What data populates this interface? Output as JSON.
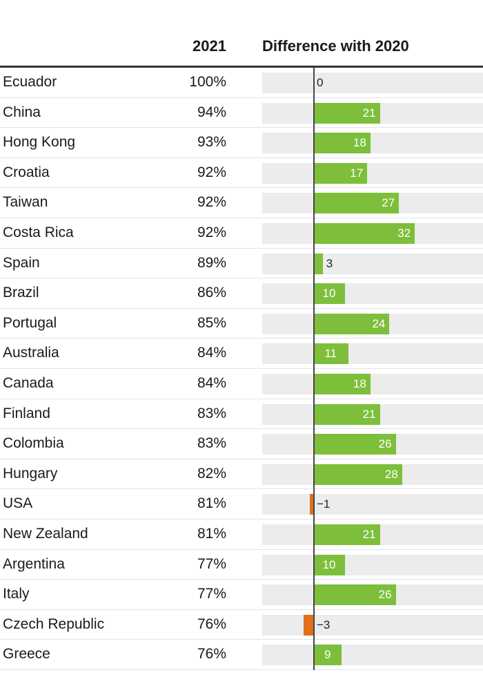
{
  "header": {
    "year_label": "2021",
    "diff_label": "Difference with 2020"
  },
  "colors": {
    "positive": "#7dbf3b",
    "negative": "#e0701a",
    "track": "#ececec"
  },
  "chart_data": {
    "type": "table",
    "columns": [
      "",
      "2021",
      "Difference with 2020"
    ],
    "rows": [
      {
        "country": "Ecuador",
        "share": "100%",
        "diff": 0,
        "diff_label": "0"
      },
      {
        "country": "China",
        "share": "94%",
        "diff": 21,
        "diff_label": "21"
      },
      {
        "country": "Hong Kong",
        "share": "93%",
        "diff": 18,
        "diff_label": "18"
      },
      {
        "country": "Croatia",
        "share": "92%",
        "diff": 17,
        "diff_label": "17"
      },
      {
        "country": "Taiwan",
        "share": "92%",
        "diff": 27,
        "diff_label": "27"
      },
      {
        "country": "Costa Rica",
        "share": "92%",
        "diff": 32,
        "diff_label": "32"
      },
      {
        "country": "Spain",
        "share": "89%",
        "diff": 3,
        "diff_label": "3"
      },
      {
        "country": "Brazil",
        "share": "86%",
        "diff": 10,
        "diff_label": "10"
      },
      {
        "country": "Portugal",
        "share": "85%",
        "diff": 24,
        "diff_label": "24"
      },
      {
        "country": "Australia",
        "share": "84%",
        "diff": 11,
        "diff_label": "11"
      },
      {
        "country": "Canada",
        "share": "84%",
        "diff": 18,
        "diff_label": "18"
      },
      {
        "country": "Finland",
        "share": "83%",
        "diff": 21,
        "diff_label": "21"
      },
      {
        "country": "Colombia",
        "share": "83%",
        "diff": 26,
        "diff_label": "26"
      },
      {
        "country": "Hungary",
        "share": "82%",
        "diff": 28,
        "diff_label": "28"
      },
      {
        "country": "USA",
        "share": "81%",
        "diff": -1,
        "diff_label": "−1"
      },
      {
        "country": "New Zealand",
        "share": "81%",
        "diff": 21,
        "diff_label": "21"
      },
      {
        "country": "Argentina",
        "share": "77%",
        "diff": 10,
        "diff_label": "10"
      },
      {
        "country": "Italy",
        "share": "77%",
        "diff": 26,
        "diff_label": "26"
      },
      {
        "country": "Czech Republic",
        "share": "76%",
        "diff": -3,
        "diff_label": "−3"
      },
      {
        "country": "Greece",
        "share": "76%",
        "diff": 9,
        "diff_label": "9"
      }
    ]
  }
}
